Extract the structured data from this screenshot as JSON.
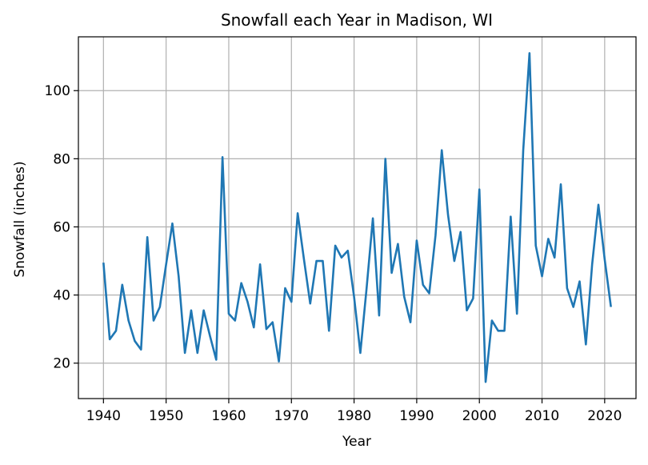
{
  "chart_data": {
    "type": "line",
    "title": "Snowfall each Year in Madison, WI",
    "xlabel": "Year",
    "ylabel": "Snowfall (inches)",
    "xlim": [
      1936,
      2025
    ],
    "ylim": [
      9.6,
      115.8
    ],
    "x_ticks": [
      1940,
      1950,
      1960,
      1970,
      1980,
      1990,
      2000,
      2010,
      2020
    ],
    "y_ticks": [
      20,
      40,
      60,
      80,
      100
    ],
    "grid": true,
    "legend": "none",
    "line_color": "#1f77b4",
    "series": [
      {
        "x": [
          1940,
          1941,
          1942,
          1943,
          1944,
          1945,
          1946,
          1947,
          1948,
          1949,
          1950,
          1951,
          1952,
          1953,
          1954,
          1955,
          1956,
          1957,
          1958,
          1959,
          1960,
          1961,
          1962,
          1963,
          1964,
          1965,
          1966,
          1967,
          1968,
          1969,
          1970,
          1971,
          1972,
          1973,
          1974,
          1975,
          1976,
          1977,
          1978,
          1979,
          1980,
          1981,
          1982,
          1983,
          1984,
          1985,
          1986,
          1987,
          1988,
          1989,
          1990,
          1991,
          1992,
          1993,
          1994,
          1995,
          1996,
          1997,
          1998,
          1999,
          2000,
          2001,
          2002,
          2003,
          2004,
          2005,
          2006,
          2007,
          2008,
          2009,
          2010,
          2011,
          2012,
          2013,
          2014,
          2015,
          2016,
          2017,
          2018,
          2019,
          2020,
          2021
        ],
        "values": [
          49.5,
          27.0,
          29.5,
          43.0,
          32.5,
          26.5,
          24.0,
          57.0,
          32.5,
          36.5,
          49.0,
          61.0,
          45.5,
          23.0,
          35.5,
          23.0,
          35.5,
          28.0,
          21.0,
          80.5,
          34.5,
          32.5,
          43.5,
          38.0,
          30.5,
          49.0,
          30.0,
          32.0,
          20.5,
          42.0,
          38.0,
          64.0,
          50.5,
          37.5,
          50.0,
          50.0,
          29.5,
          54.5,
          51.0,
          53.0,
          39.5,
          23.0,
          42.0,
          62.5,
          34.0,
          80.0,
          46.5,
          55.0,
          39.5,
          32.0,
          56.0,
          43.0,
          40.5,
          57.5,
          82.5,
          63.5,
          50.0,
          58.5,
          35.5,
          39.0,
          71.0,
          14.5,
          32.5,
          29.5,
          29.5,
          63.0,
          34.5,
          82.5,
          111.0,
          54.5,
          45.5,
          56.5,
          51.0,
          72.5,
          42.0,
          36.5,
          44.0,
          25.5,
          49.0,
          66.5,
          50.5,
          36.5
        ]
      }
    ]
  }
}
